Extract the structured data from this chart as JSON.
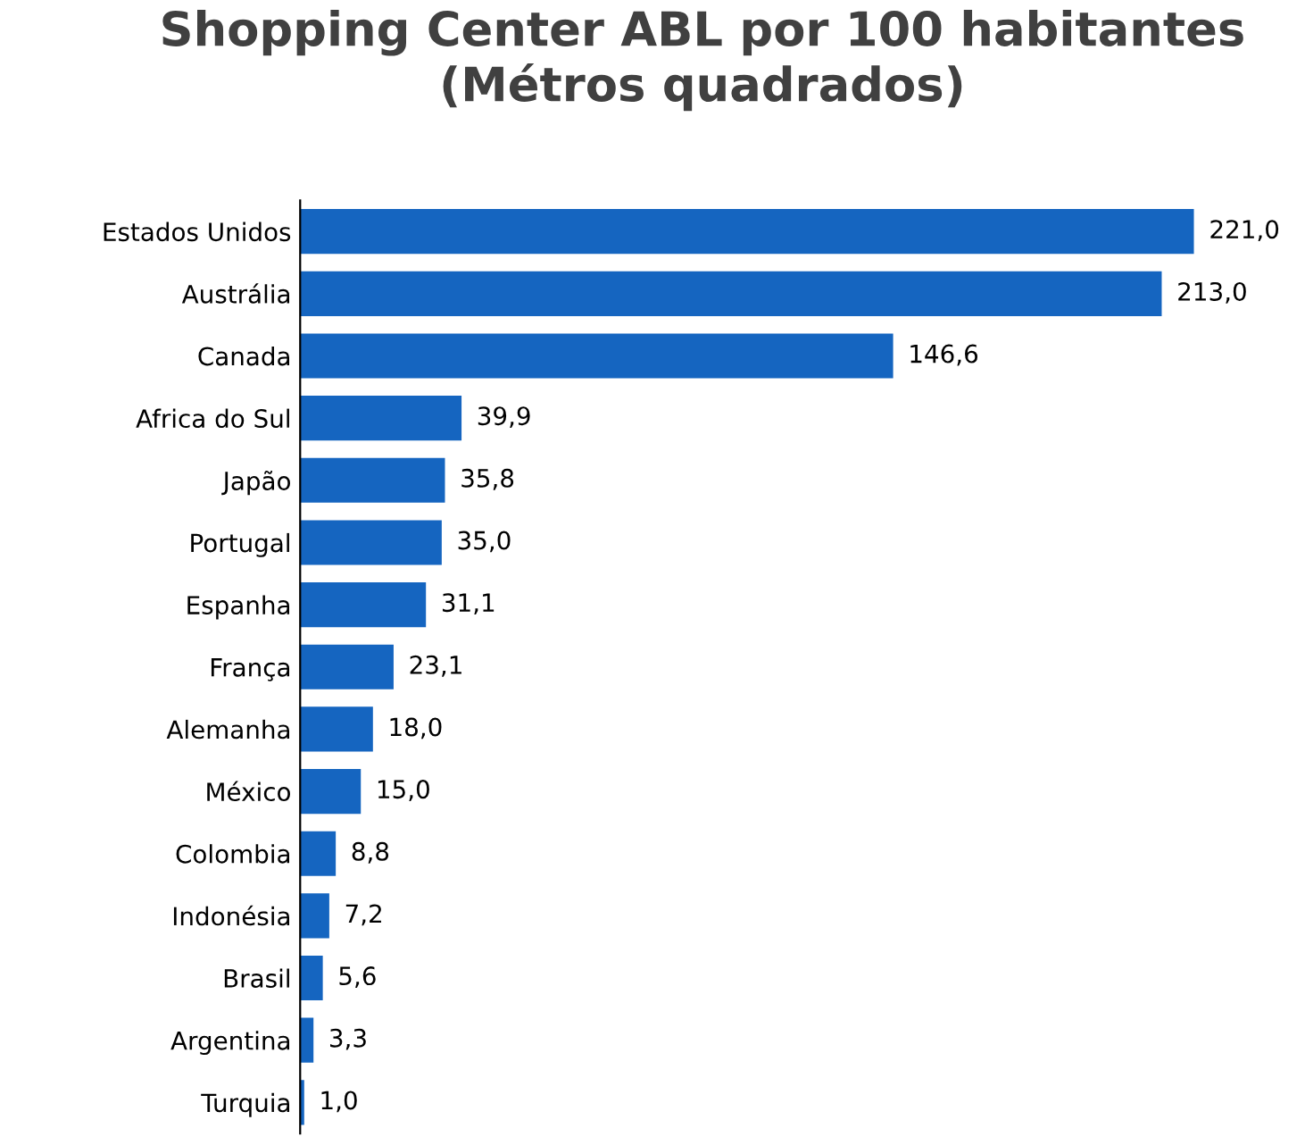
{
  "chart_data": {
    "type": "bar",
    "orientation": "horizontal",
    "title": "Shopping Center ABL por 100 habitantes\n(Métros quadrados)",
    "categories": [
      "Estados Unidos",
      "Austrália",
      "Canada",
      "Africa do Sul",
      "Japão",
      "Portugal",
      "Espanha",
      "França",
      "Alemanha",
      "México",
      "Colombia",
      "Indonésia",
      "Brasil",
      "Argentina",
      "Turquia"
    ],
    "values": [
      221.0,
      213.0,
      146.6,
      39.9,
      35.8,
      35.0,
      31.1,
      23.1,
      18.0,
      15.0,
      8.8,
      7.2,
      5.6,
      3.3,
      1.0
    ],
    "value_labels": [
      "221,0",
      "213,0",
      "146,6",
      "39,9",
      "35,8",
      "35,0",
      "31,1",
      "23,1",
      "18,0",
      "15,0",
      "8,8",
      "7,2",
      "5,6",
      "3,3",
      "1,0"
    ],
    "color": "#1565c0",
    "grid": false,
    "legend": false,
    "tick_labels": "y"
  }
}
